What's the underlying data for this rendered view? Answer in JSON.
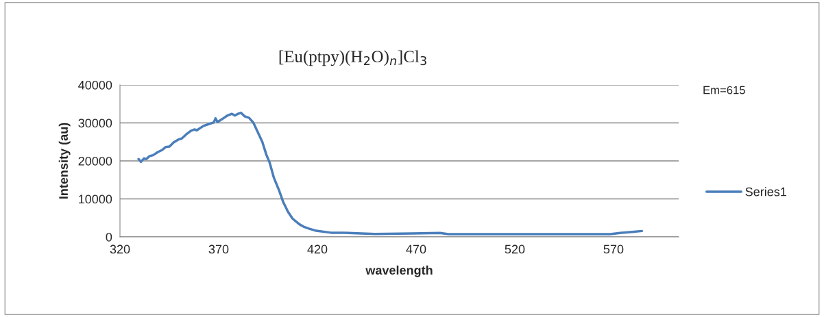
{
  "chart_data": {
    "type": "line",
    "title": "[Eu(ptpy)(H$_{2}$O)$_{n}$]Cl$_{3}$",
    "xlabel": "wavelength",
    "ylabel": "Intensity (au)",
    "annotations": [
      "Em=615"
    ],
    "xlim": [
      320,
      603
    ],
    "xticks": [
      320,
      370,
      420,
      470,
      520,
      570
    ],
    "ylim": [
      0,
      40000
    ],
    "yticks": [
      0,
      10000,
      20000,
      30000,
      40000
    ],
    "grid": "y",
    "legend": "right",
    "marker": "none",
    "line_style": "solid",
    "series": [
      {
        "name": "Series1",
        "color": "#4a7ebb",
        "x": [
          329.4,
          330.6,
          332.2,
          333.3,
          335.0,
          336.8,
          339.1,
          341.4,
          343.2,
          345.1,
          347.2,
          349.5,
          351.3,
          353.6,
          355.9,
          357.9,
          358.8,
          362.3,
          365.7,
          367.5,
          368.4,
          369.4,
          372.7,
          374.4,
          376.7,
          378.2,
          379.6,
          381.3,
          383.1,
          385.4,
          387.5,
          389.4,
          392.1,
          394.1,
          395.8,
          397.9,
          400.5,
          402.8,
          405.1,
          407.4,
          410.9,
          413.0,
          415.7,
          419.4,
          426.9,
          433.1,
          449.2,
          467.8,
          482.1,
          486.4,
          511.2,
          536.0,
          568.3,
          573.3,
          579.4,
          584.4
        ],
        "values": [
          20500,
          19760,
          20660,
          20480,
          21270,
          21500,
          22290,
          22890,
          23670,
          23800,
          24880,
          25600,
          25900,
          26990,
          27890,
          28310,
          28010,
          29220,
          29820,
          30120,
          31200,
          30240,
          31330,
          31930,
          32410,
          31930,
          32350,
          32650,
          31750,
          31330,
          30120,
          28010,
          25000,
          21690,
          19580,
          15660,
          12350,
          9040,
          6630,
          4820,
          3310,
          2700,
          2190,
          1610,
          1100,
          1100,
          770,
          900,
          1030,
          710,
          710,
          710,
          710,
          1030,
          1290,
          1550
        ]
      }
    ]
  }
}
